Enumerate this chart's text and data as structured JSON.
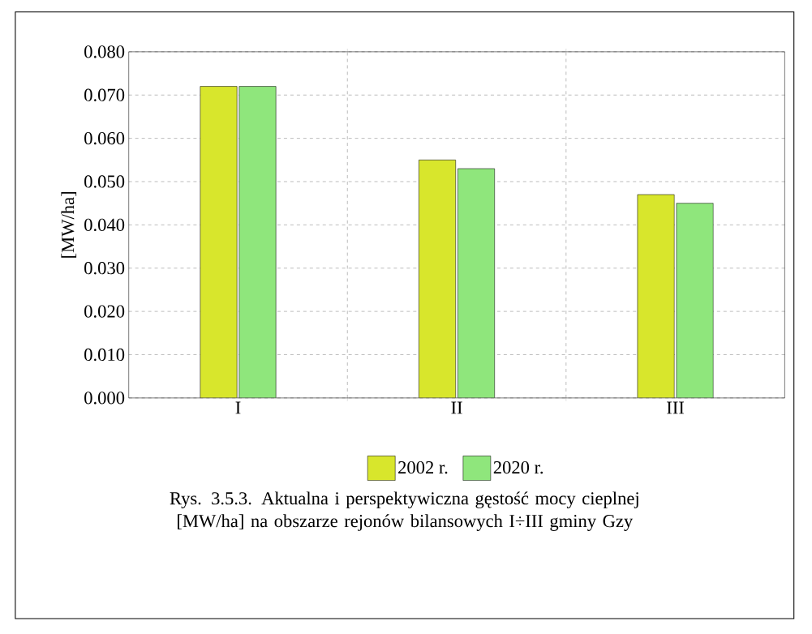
{
  "chart_data": {
    "type": "bar",
    "ylabel": "[MW/ha]",
    "categories": [
      "I",
      "II",
      "III"
    ],
    "series": [
      {
        "name": "2002 r.",
        "color": "#d8e62c",
        "values": [
          0.072,
          0.055,
          0.047
        ]
      },
      {
        "name": "2020 r.",
        "color": "#8fe67c",
        "values": [
          0.072,
          0.053,
          0.045
        ]
      }
    ],
    "ylim": [
      0,
      0.08
    ],
    "yticks": [
      {
        "value": 0,
        "label": "0.000"
      },
      {
        "value": 0.01,
        "label": "0.010"
      },
      {
        "value": 0.02,
        "label": "0.020"
      },
      {
        "value": 0.03,
        "label": "0.030"
      },
      {
        "value": 0.04,
        "label": "0.040"
      },
      {
        "value": 0.05,
        "label": "0.050"
      },
      {
        "value": 0.06,
        "label": "0.060"
      },
      {
        "value": 0.07,
        "label": "0.070"
      },
      {
        "value": 0.08,
        "label": "0.080"
      }
    ],
    "grid": true,
    "legend": "bottom",
    "annotations": [
      "Rys. 3.5.3. Aktualna i  perspektywiczna gęstość mocy cieplnej [MW/ha] na obszarze rejonów bilansowych I÷III gminy Gzy"
    ]
  }
}
